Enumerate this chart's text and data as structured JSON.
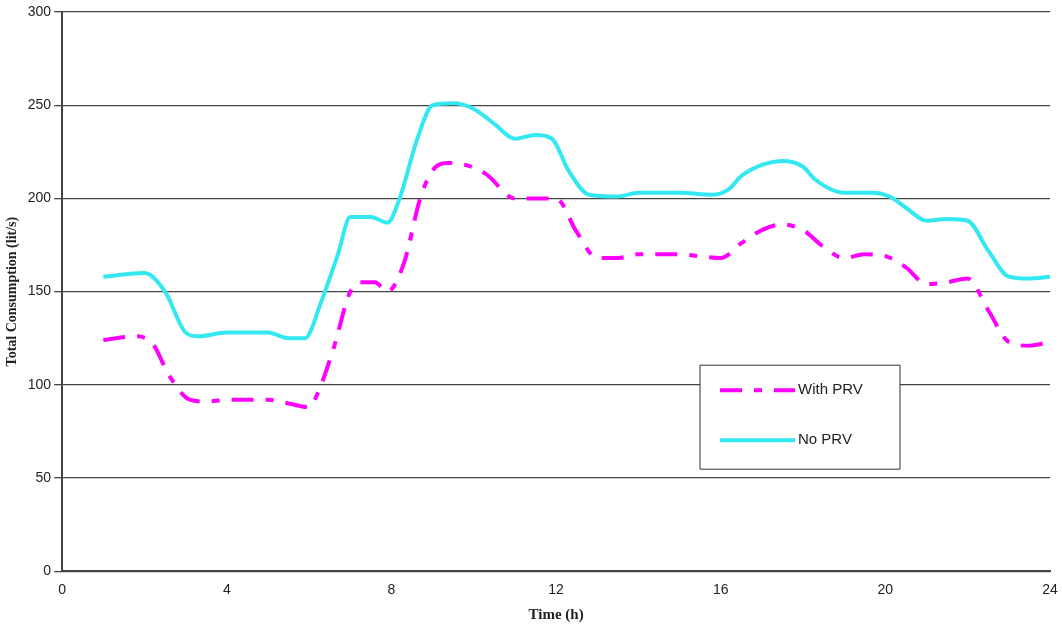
{
  "chart_data": {
    "type": "line",
    "xlabel": "Time (h)",
    "ylabel": "Total Consumption (lit/s)",
    "xlim": [
      0,
      24
    ],
    "xticks": [
      0,
      4,
      8,
      12,
      16,
      20,
      24
    ],
    "ylim": [
      0,
      300
    ],
    "yticks": [
      0,
      50,
      100,
      150,
      200,
      250,
      300
    ],
    "grid": "y",
    "legend": "bottom right",
    "marker": "none",
    "series": [
      {
        "name": "With PRV",
        "color": "#ff00ff",
        "line_style": "dashed",
        "x": [
          1,
          1.8,
          2.2,
          2.6,
          3.1,
          3.5,
          4,
          5,
          5.5,
          6,
          6.2,
          6.6,
          7,
          7.3,
          7.6,
          7.9,
          8.3,
          8.7,
          9,
          9.4,
          9.8,
          10.3,
          11,
          11.5,
          12,
          12.5,
          13,
          13.5,
          14,
          15,
          15.5,
          16,
          16.5,
          17,
          17.5,
          18,
          18.5,
          19,
          19.5,
          20,
          20.5,
          21,
          21.5,
          22,
          22.5,
          23,
          23.5,
          24
        ],
        "values": [
          124,
          126,
          122,
          105,
          92,
          91,
          92,
          92,
          90,
          88,
          95,
          120,
          150,
          155,
          155,
          150,
          165,
          200,
          215,
          219,
          218,
          213,
          200,
          200,
          200,
          182,
          168,
          168,
          170,
          170,
          169,
          168,
          176,
          183,
          186,
          183,
          174,
          168,
          170,
          169,
          163,
          154,
          155,
          157,
          140,
          123,
          121,
          123
        ]
      },
      {
        "name": "No PRV",
        "color": "#33e8f0",
        "line_style": "solid",
        "x": [
          1,
          2,
          2.5,
          3,
          3.3,
          4,
          5,
          5.5,
          5.9,
          6.3,
          6.7,
          7,
          7.5,
          7.9,
          8.2,
          8.6,
          9,
          9.5,
          10,
          10.5,
          11,
          11.5,
          11.9,
          12.3,
          12.8,
          13.5,
          14,
          15,
          15.8,
          16.2,
          16.5,
          17,
          17.5,
          18,
          18.3,
          19,
          19.7,
          20.1,
          20.5,
          21,
          21.5,
          22,
          22.5,
          23,
          23.5,
          24
        ],
        "values": [
          158,
          160,
          150,
          128,
          126,
          128,
          128,
          125,
          125,
          145,
          170,
          190,
          190,
          187,
          200,
          230,
          250,
          251,
          248,
          240,
          232,
          234,
          232,
          215,
          202,
          201,
          203,
          203,
          202,
          205,
          212,
          218,
          220,
          217,
          210,
          203,
          203,
          201,
          195,
          188,
          189,
          188,
          172,
          158,
          157,
          158
        ]
      }
    ]
  }
}
